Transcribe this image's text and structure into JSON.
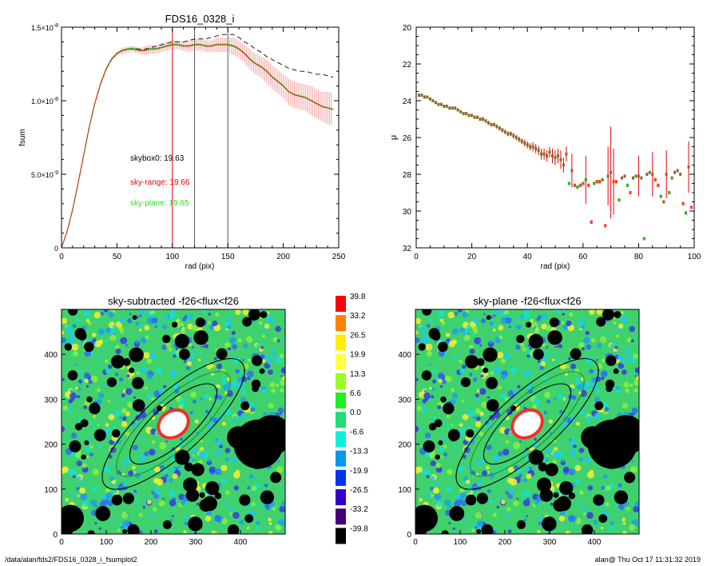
{
  "colors": {
    "profile_line": "#a07a20",
    "sky_range": "#e8000b",
    "sky_plane": "#22dd22",
    "dashed": "#000000",
    "vline_red": "#e8000b",
    "vline_grey": "#555555",
    "map_background": "#3fd16e"
  },
  "footer": {
    "path": "/data/alan/fds2/FDS16_0328_i_fsumplot2",
    "stamp": "alan@  Thu Oct 17 11:31:32 2019"
  },
  "chart_data": [
    {
      "type": "line",
      "title": "FDS16_0328_i",
      "xlabel": "rad (pix)",
      "ylabel": "fsum",
      "xlim": [
        0,
        250
      ],
      "ylim": [
        0,
        1.5e-08
      ],
      "x_ticks": [
        "0",
        "50",
        "100",
        "150",
        "200",
        "250"
      ],
      "y_ticks": [
        {
          "value": 0,
          "label": "0",
          "exp": ""
        },
        {
          "value": 5e-09,
          "label": "5.0×10",
          "exp": "-9"
        },
        {
          "value": 1e-08,
          "label": "1.0×10",
          "exp": "-8"
        },
        {
          "value": 1.5e-08,
          "label": "1.5×10",
          "exp": "-8"
        }
      ],
      "vlines": [
        {
          "x": 100,
          "color": "red"
        },
        {
          "x": 120,
          "color": "grey"
        },
        {
          "x": 150,
          "color": "grey"
        }
      ],
      "annotations": [
        {
          "text": "skybox0: 19.63",
          "color": "black"
        },
        {
          "text": "sky-range: 19.66",
          "color": "red"
        },
        {
          "text": "sky-plane: 19.65",
          "color": "green"
        }
      ],
      "series": {
        "x": [
          0,
          5,
          10,
          15,
          20,
          25,
          30,
          35,
          40,
          45,
          50,
          55,
          60,
          65,
          70,
          75,
          80,
          85,
          90,
          95,
          100,
          105,
          110,
          115,
          120,
          125,
          130,
          135,
          140,
          145,
          150,
          155,
          160,
          165,
          170,
          175,
          180,
          185,
          190,
          195,
          200,
          205,
          210,
          215,
          220,
          225,
          230,
          235,
          240,
          245
        ],
        "main": [
          0,
          1.1e-09,
          2.6e-09,
          4.4e-09,
          6.3e-09,
          8.2e-09,
          9.8e-09,
          1.11e-08,
          1.21e-08,
          1.28e-08,
          1.32e-08,
          1.34e-08,
          1.35e-08,
          1.35e-08,
          1.34e-08,
          1.34e-08,
          1.35e-08,
          1.35e-08,
          1.36e-08,
          1.37e-08,
          1.38e-08,
          1.38e-08,
          1.37e-08,
          1.37e-08,
          1.38e-08,
          1.38e-08,
          1.37e-08,
          1.37e-08,
          1.38e-08,
          1.38e-08,
          1.38e-08,
          1.37e-08,
          1.35e-08,
          1.32e-08,
          1.28e-08,
          1.25e-08,
          1.23e-08,
          1.2e-08,
          1.16e-08,
          1.13e-08,
          1.1e-08,
          1.06e-08,
          1.04e-08,
          1.03e-08,
          1.02e-08,
          1e-08,
          9.8e-09,
          9.6e-09,
          9.5e-09,
          9.4e-09
        ],
        "err": [
          0,
          1e-10,
          1e-10,
          1e-10,
          1e-10,
          1e-10,
          1e-10,
          1e-10,
          1e-10,
          1e-10,
          1e-10,
          2e-10,
          2e-10,
          2e-10,
          2e-10,
          3e-10,
          3e-10,
          3e-10,
          3e-10,
          3e-10,
          3e-10,
          3e-10,
          3e-10,
          4e-10,
          4e-10,
          4e-10,
          4e-10,
          4e-10,
          5e-10,
          5e-10,
          5e-10,
          6e-10,
          6e-10,
          6e-10,
          7e-10,
          7e-10,
          7e-10,
          8e-10,
          8e-10,
          8e-10,
          8e-10,
          9e-10,
          9e-10,
          9e-10,
          9e-10,
          1e-09,
          1e-09,
          1e-09,
          1.1e-09,
          1.1e-09
        ],
        "dashed": [
          0,
          1.1e-09,
          2.6e-09,
          4.4e-09,
          6.3e-09,
          8.2e-09,
          9.8e-09,
          1.11e-08,
          1.21e-08,
          1.28e-08,
          1.32e-08,
          1.34e-08,
          1.35e-08,
          1.36e-08,
          1.35e-08,
          1.35e-08,
          1.36e-08,
          1.37e-08,
          1.38e-08,
          1.39e-08,
          1.4e-08,
          1.4e-08,
          1.4e-08,
          1.41e-08,
          1.42e-08,
          1.42e-08,
          1.42e-08,
          1.43e-08,
          1.44e-08,
          1.45e-08,
          1.45e-08,
          1.45e-08,
          1.43e-08,
          1.4e-08,
          1.38e-08,
          1.35e-08,
          1.33e-08,
          1.3e-08,
          1.28e-08,
          1.26e-08,
          1.24e-08,
          1.22e-08,
          1.21e-08,
          1.2e-08,
          1.2e-08,
          1.19e-08,
          1.18e-08,
          1.18e-08,
          1.17e-08,
          1.16e-08
        ]
      }
    },
    {
      "type": "scatter",
      "title": "",
      "xlabel": "rad (pix)",
      "ylabel": "μ",
      "xlim": [
        0,
        100
      ],
      "ylim": [
        32,
        20
      ],
      "x_ticks": [
        "0",
        "20",
        "40",
        "60",
        "80",
        "100"
      ],
      "y_ticks": [
        "20",
        "22",
        "24",
        "26",
        "28",
        "30",
        "32"
      ],
      "points": {
        "x": [
          1,
          2,
          3,
          4,
          5,
          6,
          7,
          8,
          9,
          10,
          11,
          12,
          13,
          14,
          15,
          16,
          17,
          18,
          19,
          20,
          21,
          22,
          23,
          24,
          25,
          26,
          27,
          28,
          29,
          30,
          31,
          32,
          33,
          34,
          35,
          36,
          37,
          38,
          39,
          40,
          41,
          42,
          43,
          44,
          45,
          46,
          47,
          48,
          49,
          50,
          51,
          52,
          53,
          54,
          55,
          56,
          57,
          58,
          59,
          60,
          61,
          62,
          63,
          64,
          65,
          66,
          67,
          68,
          69,
          70,
          71,
          72,
          73,
          74,
          75,
          76,
          77,
          78,
          79,
          80,
          81,
          82,
          83,
          84,
          85,
          86,
          87,
          88,
          89,
          90,
          91,
          92,
          93,
          94,
          95,
          96,
          97,
          98,
          99
        ],
        "mu": [
          23.7,
          23.7,
          23.8,
          23.8,
          23.9,
          24.0,
          24.1,
          24.2,
          24.2,
          24.3,
          24.3,
          24.4,
          24.4,
          24.4,
          24.5,
          24.6,
          24.7,
          24.7,
          24.8,
          24.8,
          24.9,
          24.9,
          25.0,
          25.0,
          25.1,
          25.2,
          25.3,
          25.3,
          25.4,
          25.5,
          25.6,
          25.7,
          25.8,
          25.8,
          25.9,
          26.0,
          26.1,
          26.2,
          26.3,
          26.4,
          26.5,
          26.5,
          26.6,
          26.7,
          26.9,
          26.9,
          27.0,
          26.8,
          27.0,
          27.1,
          27.0,
          27.2,
          27.5,
          26.9,
          28.5,
          27.8,
          28.6,
          28.7,
          28.6,
          28.5,
          28.3,
          28.6,
          30.6,
          28.5,
          28.4,
          28.4,
          28.3,
          30.8,
          28.1,
          27.9,
          28.4,
          28.4,
          29.4,
          28.2,
          28.1,
          28.6,
          29.0,
          28.2,
          28.1,
          28.1,
          28.2,
          31.5,
          28.0,
          27.9,
          28.0,
          28.3,
          28.6,
          29.2,
          29.5,
          28.0,
          29.0,
          28.2,
          27.9,
          27.8,
          28.0,
          29.6,
          30.1,
          27.6,
          29.8
        ],
        "err": [
          0.05,
          0.05,
          0.05,
          0.05,
          0.05,
          0.05,
          0.05,
          0.05,
          0.05,
          0.06,
          0.06,
          0.06,
          0.07,
          0.07,
          0.07,
          0.07,
          0.08,
          0.08,
          0.08,
          0.08,
          0.09,
          0.09,
          0.1,
          0.1,
          0.1,
          0.1,
          0.1,
          0.1,
          0.12,
          0.12,
          0.12,
          0.12,
          0.13,
          0.13,
          0.15,
          0.15,
          0.15,
          0.15,
          0.2,
          0.2,
          0.2,
          0.25,
          0.25,
          0.25,
          0.3,
          0.3,
          0.3,
          0.3,
          0.4,
          0.4,
          0.4,
          0.5,
          0.4,
          0.4,
          0.0,
          0.9,
          0.0,
          0.0,
          0.0,
          0.0,
          1.3,
          0.0,
          0.0,
          0.0,
          0.0,
          0.0,
          0.0,
          0.0,
          1.6,
          2.5,
          1.8,
          0.0,
          0.0,
          0.0,
          0.0,
          0.0,
          0.0,
          0.0,
          0.0,
          1.1,
          0.0,
          0.0,
          0.0,
          0.0,
          1.2,
          0.0,
          0.0,
          0.0,
          0.0,
          1.3,
          0.0,
          0.0,
          0.0,
          0.0,
          0.0,
          0.0,
          0.0,
          1.4,
          0.0
        ]
      }
    },
    {
      "type": "heatmap",
      "title": "sky-subtracted -f26<flux<f26",
      "xlim": [
        0,
        500
      ],
      "ylim": [
        0,
        500
      ],
      "x_ticks": [
        "0",
        "100",
        "200",
        "300",
        "400"
      ],
      "y_ticks": [
        "0",
        "100",
        "200",
        "300",
        "400"
      ]
    },
    {
      "type": "heatmap",
      "title": "sky-plane -f26<flux<f26",
      "xlim": [
        0,
        500
      ],
      "ylim": [
        0,
        500
      ],
      "x_ticks": [
        "0",
        "100",
        "200",
        "300",
        "400"
      ],
      "y_ticks": [
        "0",
        "100",
        "200",
        "300",
        "400"
      ]
    },
    {
      "type": "legend",
      "colorbar": [
        {
          "label": "39.8",
          "color": "#ff0000"
        },
        {
          "label": "33.2",
          "color": "#ff7f00"
        },
        {
          "label": "26.5",
          "color": "#ffee00"
        },
        {
          "label": "19.9",
          "color": "#ffff44"
        },
        {
          "label": "13.3",
          "color": "#99ff22"
        },
        {
          "label": "6.6",
          "color": "#22ee22"
        },
        {
          "label": "0.0",
          "color": "#22dd77"
        },
        {
          "label": "-6.6",
          "color": "#11eedd"
        },
        {
          "label": "-13.3",
          "color": "#0099ee"
        },
        {
          "label": "-19.9",
          "color": "#0033ee"
        },
        {
          "label": "-26.5",
          "color": "#3300cc"
        },
        {
          "label": "-33.2",
          "color": "#440077"
        },
        {
          "label": "-39.8",
          "color": "#000000"
        }
      ]
    }
  ]
}
